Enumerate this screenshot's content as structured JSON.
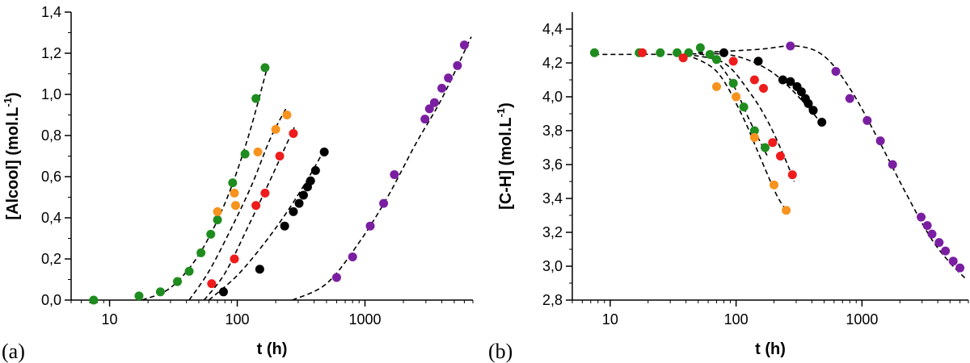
{
  "figure": {
    "panels": [
      "(a)",
      "(b)"
    ]
  },
  "chart_data": [
    {
      "type": "scatter",
      "panel": "(a)",
      "xlabel": "t (h)",
      "ylabel": "[Alcool] (mol.L",
      "ylabel_sup": "-1",
      "ylabel_tail": ")",
      "xscale": "log",
      "xlim": [
        5,
        7000
      ],
      "ylim": [
        0,
        1.4
      ],
      "xticks": [
        10,
        100,
        1000
      ],
      "xtick_labels": [
        "10",
        "100",
        "1000"
      ],
      "yticks": [
        0,
        0.2,
        0.4,
        0.6,
        0.8,
        1.0,
        1.2,
        1.4
      ],
      "ytick_labels": [
        "0,0",
        "0,2",
        "0,4",
        "0,6",
        "0,8",
        "1,0",
        "1,2",
        "1,4"
      ],
      "grid": false,
      "series": [
        {
          "color": "#1e8c1e",
          "x": [
            7.5,
            17,
            25,
            34,
            42,
            52,
            62,
            70,
            92,
            115,
            140,
            165
          ],
          "y": [
            0.0,
            0.02,
            0.04,
            0.09,
            0.14,
            0.23,
            0.32,
            0.39,
            0.57,
            0.71,
            0.98,
            1.13
          ],
          "fit_x": [
            18,
            30,
            50,
            80,
            120,
            170
          ],
          "fit_y": [
            0.0,
            0.06,
            0.22,
            0.47,
            0.78,
            1.12
          ]
        },
        {
          "color": "#f7931e",
          "x": [
            70,
            95,
            97,
            145,
            200,
            245
          ],
          "y": [
            0.43,
            0.52,
            0.46,
            0.72,
            0.83,
            0.9
          ],
          "fit_x": [
            42,
            60,
            90,
            130,
            180,
            240
          ],
          "fit_y": [
            0.0,
            0.14,
            0.35,
            0.56,
            0.78,
            0.93
          ]
        },
        {
          "color": "#ee1c1c",
          "x": [
            63,
            95,
            140,
            165,
            215,
            275
          ],
          "y": [
            0.08,
            0.2,
            0.46,
            0.52,
            0.7,
            0.81
          ],
          "fit_x": [
            55,
            80,
            120,
            180,
            240,
            280
          ],
          "fit_y": [
            0.0,
            0.13,
            0.35,
            0.58,
            0.75,
            0.84
          ]
        },
        {
          "color": "#000000",
          "x": [
            78,
            150,
            235,
            275,
            305,
            330,
            355,
            375,
            410,
            480
          ],
          "y": [
            0.04,
            0.15,
            0.36,
            0.43,
            0.47,
            0.51,
            0.55,
            0.58,
            0.63,
            0.72
          ],
          "fit_x": [
            60,
            100,
            160,
            240,
            350,
            480
          ],
          "fit_y": [
            0.0,
            0.12,
            0.27,
            0.42,
            0.58,
            0.73
          ]
        },
        {
          "color": "#7b1fa2",
          "x": [
            600,
            800,
            1100,
            1400,
            1700,
            2950,
            3200,
            3500,
            4000,
            4500,
            5300,
            6000
          ],
          "y": [
            0.11,
            0.21,
            0.36,
            0.47,
            0.61,
            0.88,
            0.93,
            0.96,
            1.03,
            1.08,
            1.14,
            1.24
          ],
          "fit_x": [
            270,
            500,
            900,
            1500,
            2500,
            4000,
            6800
          ],
          "fit_y": [
            0.0,
            0.08,
            0.28,
            0.5,
            0.76,
            0.98,
            1.28
          ]
        }
      ]
    },
    {
      "type": "scatter",
      "panel": "(b)",
      "xlabel": "t (h)",
      "ylabel": "[C-H] (mol.L",
      "ylabel_sup": "-1",
      "ylabel_tail": ")",
      "xscale": "log",
      "xlim": [
        5,
        7000
      ],
      "ylim": [
        2.8,
        4.5
      ],
      "xticks": [
        10,
        100,
        1000
      ],
      "xtick_labels": [
        "10",
        "100",
        "1000"
      ],
      "yticks": [
        2.8,
        3.0,
        3.2,
        3.4,
        3.6,
        3.8,
        4.0,
        4.2,
        4.4
      ],
      "ytick_labels": [
        "2,8",
        "3,0",
        "3,2",
        "3,4",
        "3,6",
        "3,8",
        "4,0",
        "4,2",
        "4,4"
      ],
      "grid": false,
      "series": [
        {
          "color": "#1e8c1e",
          "x": [
            7.5,
            17,
            25,
            34,
            42,
            52,
            62,
            70,
            95,
            115,
            140,
            170
          ],
          "y": [
            4.26,
            4.26,
            4.26,
            4.26,
            4.26,
            4.29,
            4.25,
            4.22,
            4.08,
            3.94,
            3.8,
            3.7
          ],
          "fit_x": [
            7.5,
            30,
            60,
            90,
            130,
            180
          ],
          "fit_y": [
            4.25,
            4.25,
            4.24,
            4.1,
            3.85,
            3.64
          ]
        },
        {
          "color": "#f7931e",
          "x": [
            70,
            100,
            140,
            200,
            250
          ],
          "y": [
            4.06,
            4.0,
            3.76,
            3.48,
            3.33
          ],
          "fit_x": [
            40,
            70,
            110,
            160,
            210,
            250
          ],
          "fit_y": [
            4.25,
            4.15,
            3.9,
            3.62,
            3.42,
            3.33
          ]
        },
        {
          "color": "#ee1c1c",
          "x": [
            18,
            38,
            95,
            140,
            165,
            195,
            225,
            280
          ],
          "y": [
            4.26,
            4.23,
            4.21,
            4.1,
            4.05,
            3.73,
            3.65,
            3.54
          ],
          "fit_x": [
            40,
            80,
            130,
            180,
            240,
            290
          ],
          "fit_y": [
            4.25,
            4.2,
            4.02,
            3.85,
            3.65,
            3.5
          ]
        },
        {
          "color": "#000000",
          "x": [
            80,
            150,
            235,
            270,
            305,
            330,
            355,
            375,
            410,
            480
          ],
          "y": [
            4.26,
            4.21,
            4.1,
            4.09,
            4.06,
            4.03,
            3.99,
            3.96,
            3.92,
            3.85
          ],
          "fit_x": [
            50,
            100,
            180,
            270,
            380,
            480
          ],
          "fit_y": [
            4.26,
            4.24,
            4.16,
            4.05,
            3.93,
            3.84
          ]
        },
        {
          "color": "#7b1fa2",
          "x": [
            270,
            620,
            800,
            1100,
            1400,
            1750,
            2950,
            3300,
            3600,
            4100,
            4600,
            5300,
            6000
          ],
          "y": [
            4.3,
            4.15,
            3.99,
            3.86,
            3.74,
            3.6,
            3.29,
            3.24,
            3.19,
            3.14,
            3.09,
            3.03,
            2.99
          ],
          "fit_x": [
            50,
            150,
            300,
            500,
            800,
            1300,
            2200,
            3500,
            5000,
            6800
          ],
          "fit_y": [
            4.26,
            4.28,
            4.3,
            4.24,
            4.05,
            3.77,
            3.44,
            3.17,
            3.02,
            2.92
          ]
        }
      ]
    }
  ]
}
